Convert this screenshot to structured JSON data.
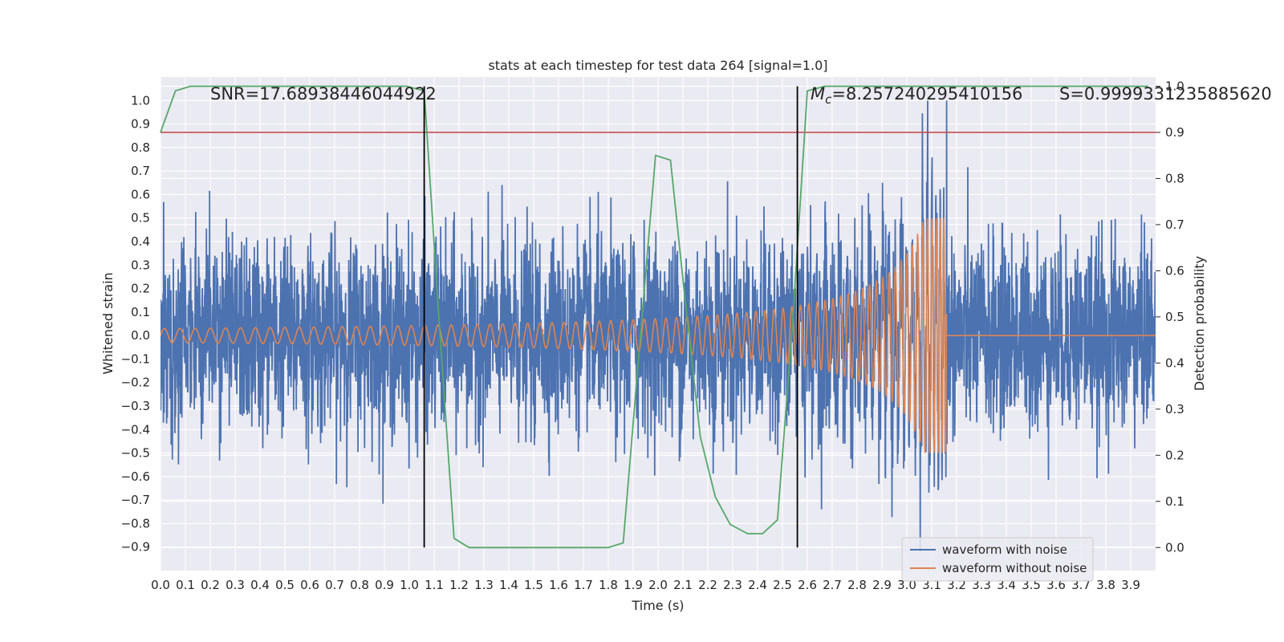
{
  "chart_data": {
    "type": "line",
    "title": "stats at each timestep for test data 264 [signal=1.0]",
    "xlabel": "Time (s)",
    "ylabel": "Whitened strain",
    "y2label": "Detection probability",
    "xlim": [
      0.0,
      4.0
    ],
    "ylim": [
      -1.0,
      1.1
    ],
    "y2lim": [
      -0.05,
      1.02
    ],
    "x_ticks": [
      0.0,
      0.1,
      0.2,
      0.3,
      0.4,
      0.5,
      0.6,
      0.7,
      0.8,
      0.9,
      1.0,
      1.1,
      1.2,
      1.3,
      1.4,
      1.5,
      1.6,
      1.7,
      1.8,
      1.9,
      2.0,
      2.1,
      2.2,
      2.3,
      2.4,
      2.5,
      2.6,
      2.7,
      2.8,
      2.9,
      3.0,
      3.1,
      3.2,
      3.3,
      3.4,
      3.5,
      3.6,
      3.7,
      3.8,
      3.9
    ],
    "x_tick_labels": [
      "0.0",
      "0.1",
      "0.2",
      "0.3",
      "0.4",
      "0.5",
      "0.6",
      "0.7",
      "0.8",
      "0.9",
      "1.0",
      "1.1",
      "1.2",
      "1.3",
      "1.4",
      "1.5",
      "1.6",
      "1.7",
      "1.8",
      "1.9",
      "2.0",
      "2.1",
      "2.2",
      "2.3",
      "2.4",
      "2.5",
      "2.6",
      "2.7",
      "2.8",
      "2.9",
      "3.0",
      "3.1",
      "3.2",
      "3.3",
      "3.4",
      "3.5",
      "3.6",
      "3.7",
      "3.8",
      "3.9"
    ],
    "y_ticks": [
      1.0,
      0.9,
      0.8,
      0.7,
      0.6,
      0.5,
      0.4,
      0.3,
      0.2,
      0.1,
      0.0,
      -0.1,
      -0.2,
      -0.3,
      -0.4,
      -0.5,
      -0.6,
      -0.7,
      -0.8,
      -0.9
    ],
    "y_tick_labels": [
      "1.0",
      "0.9",
      "0.8",
      "0.7",
      "0.6",
      "0.5",
      "0.4",
      "0.3",
      "0.2",
      "0.1",
      "0.0",
      "−0.1",
      "−0.2",
      "−0.3",
      "−0.4",
      "−0.5",
      "−0.6",
      "−0.7",
      "−0.8",
      "−0.9"
    ],
    "y2_ticks": [
      1.0,
      0.9,
      0.8,
      0.7,
      0.6,
      0.5,
      0.4,
      0.3,
      0.2,
      0.1,
      0.0
    ],
    "y2_tick_labels": [
      "1.0",
      "0.9",
      "0.8",
      "0.7",
      "0.6",
      "0.5",
      "0.4",
      "0.3",
      "0.2",
      "0.1",
      "0.0"
    ],
    "annotations": {
      "snr": "SNR=17.68938446044922",
      "mc_symbol": "M",
      "mc_sub": "c",
      "mc_value": "=8.257240295410156",
      "s": "S=0.9999331235885620"
    },
    "vlines_x": [
      1.06,
      2.56
    ],
    "threshold_y2": 0.9,
    "noisy_series": {
      "name": "waveform with noise",
      "color": "#4c72b0",
      "sample_rate": 1024,
      "amplitude": 0.2,
      "spike_x": 3.16,
      "spike_y": 1.0
    },
    "clean_series": {
      "name": "waveform without noise",
      "color": "#dd8452",
      "coalescence_t": 3.16,
      "start_amplitude": 0.03,
      "peak_amplitude": 0.5,
      "post_merger_y": 0.0
    },
    "probability_series": {
      "name": "Detection probability",
      "color": "#55a868",
      "x": [
        0.0,
        0.06,
        0.12,
        0.18,
        0.25,
        0.31,
        0.37,
        0.43,
        0.49,
        0.56,
        0.62,
        0.68,
        0.74,
        0.8,
        0.87,
        0.93,
        0.99,
        1.06,
        1.12,
        1.18,
        1.24,
        1.3,
        1.37,
        1.43,
        1.49,
        1.55,
        1.61,
        1.68,
        1.74,
        1.8,
        1.86,
        1.92,
        1.99,
        2.05,
        2.11,
        2.17,
        2.23,
        2.29,
        2.36,
        2.42,
        2.48,
        2.54,
        2.6,
        2.67,
        2.73,
        2.79,
        2.85,
        2.91,
        2.98,
        3.04,
        3.1,
        3.16,
        3.22,
        3.28,
        3.35,
        3.41,
        3.47,
        3.53,
        3.59,
        3.66,
        3.72,
        3.78,
        3.84,
        3.9,
        3.97
      ],
      "y": [
        0.9,
        0.99,
        1.0,
        1.0,
        1.0,
        1.0,
        1.0,
        1.0,
        1.0,
        1.0,
        1.0,
        1.0,
        1.0,
        1.0,
        1.0,
        1.0,
        1.0,
        0.99,
        0.49,
        0.02,
        0.0,
        0.0,
        0.0,
        0.0,
        0.0,
        0.0,
        0.0,
        0.0,
        0.0,
        0.0,
        0.01,
        0.4,
        0.85,
        0.84,
        0.53,
        0.24,
        0.11,
        0.05,
        0.03,
        0.03,
        0.06,
        0.48,
        0.99,
        1.0,
        1.0,
        1.0,
        1.0,
        1.0,
        1.0,
        1.0,
        1.0,
        1.0,
        1.0,
        1.0,
        1.0,
        1.0,
        1.0,
        1.0,
        1.0,
        1.0,
        1.0,
        1.0,
        1.0,
        1.0,
        1.0
      ]
    },
    "threshold_color": "#c44e52",
    "legend": {
      "placement": "lower-right",
      "entries": [
        "waveform with noise",
        "waveform without noise"
      ]
    }
  }
}
